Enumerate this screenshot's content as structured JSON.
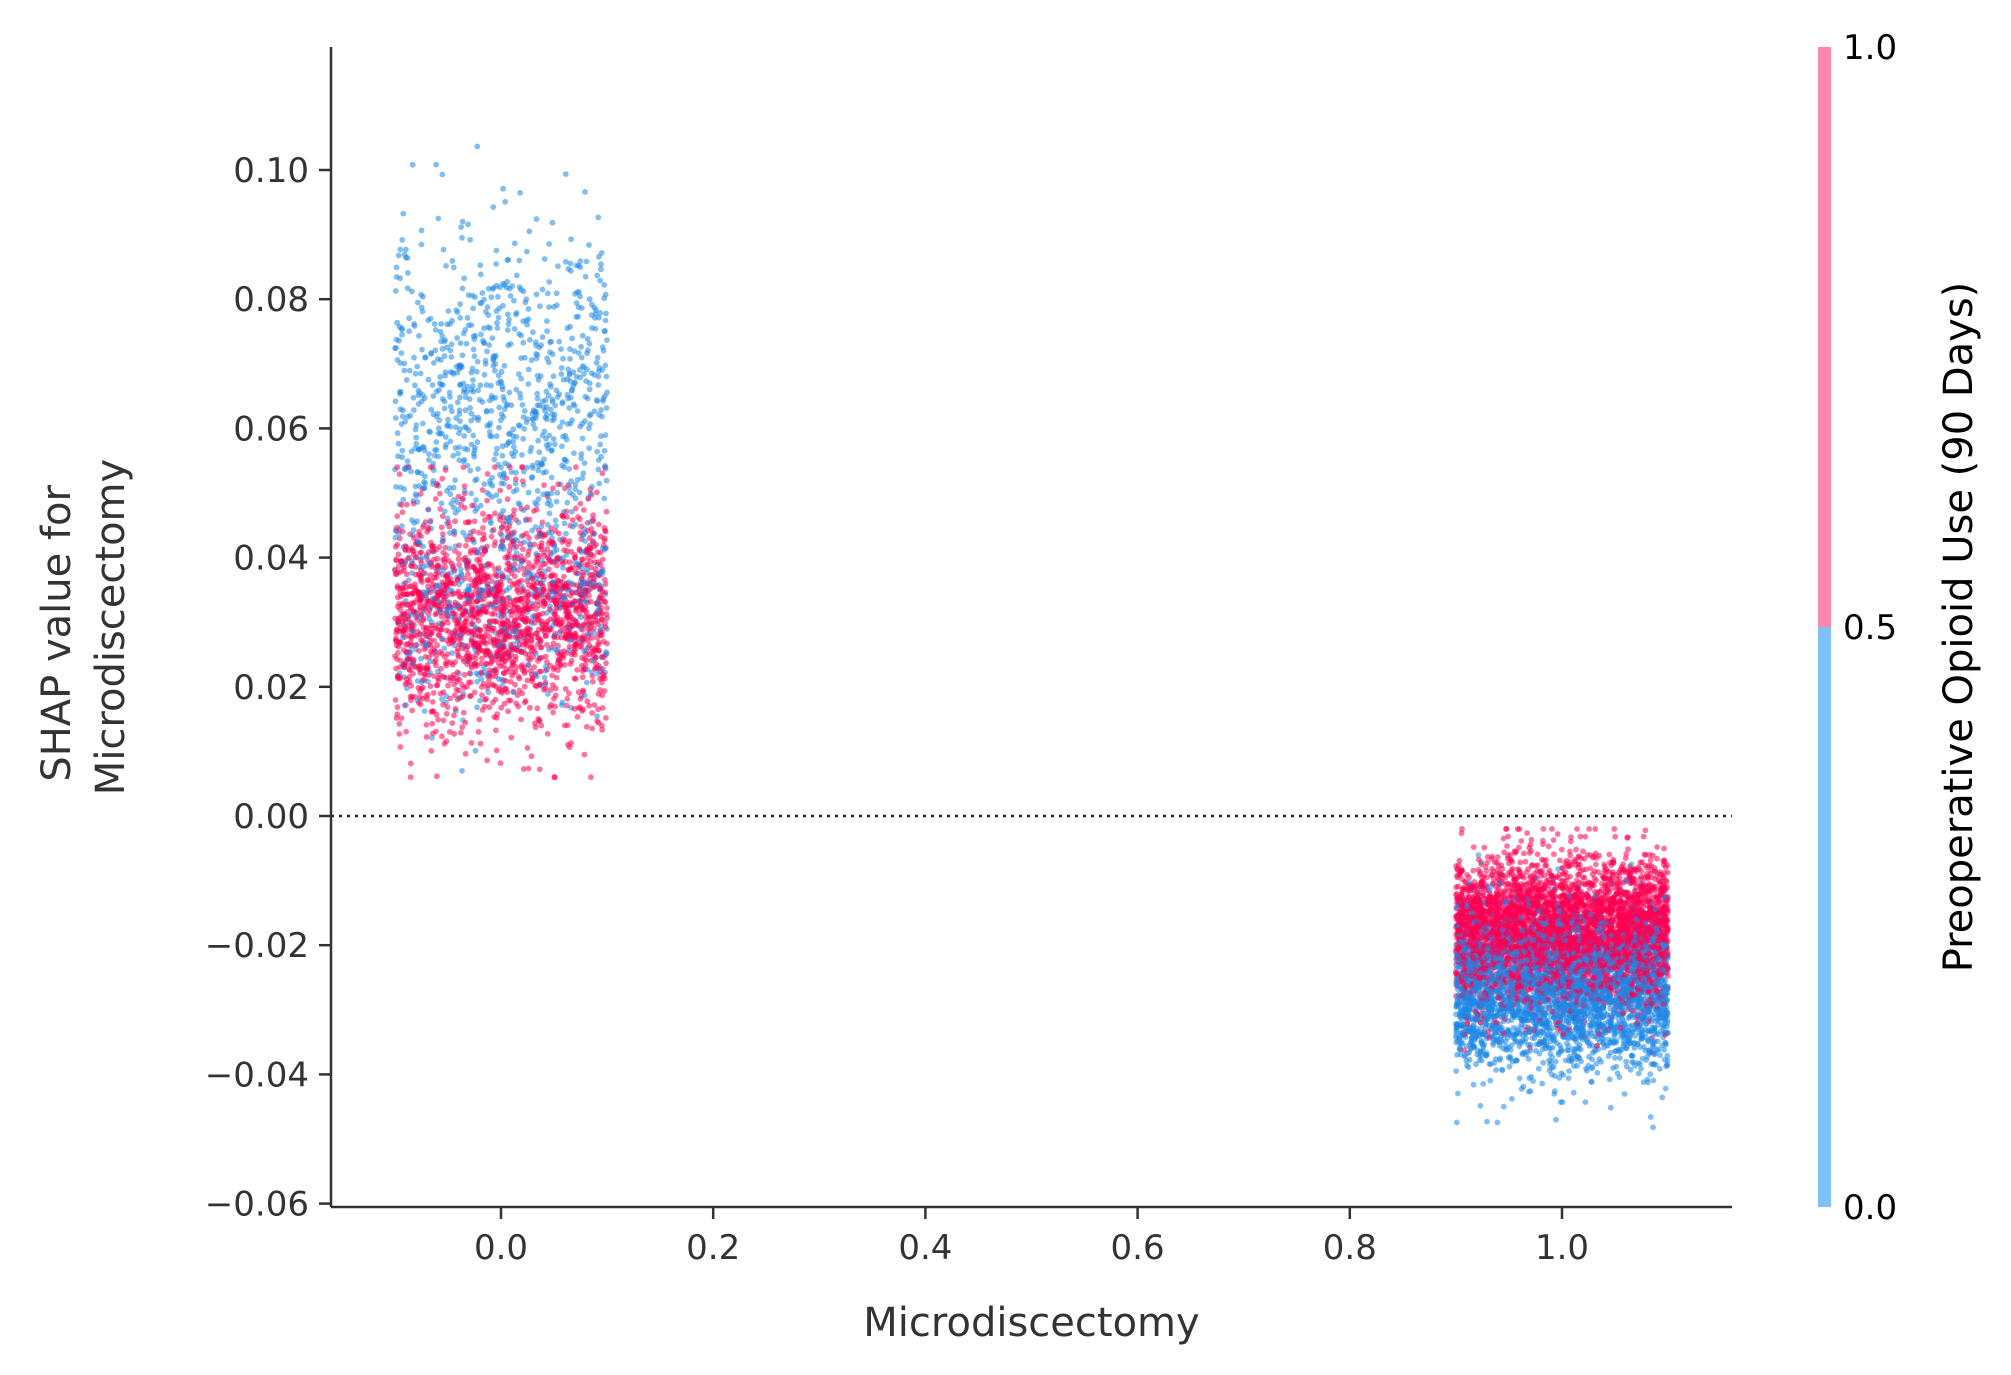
{
  "chart_data": {
    "type": "scatter",
    "title": "",
    "xlabel": "Microdiscectomy",
    "ylabel": [
      "SHAP value for",
      "Microdiscectomy"
    ],
    "xlim": [
      -0.16,
      1.16
    ],
    "ylim": [
      -0.0605,
      0.1195
    ],
    "x_ticks": [
      0.0,
      0.2,
      0.4,
      0.6,
      0.8,
      1.0
    ],
    "x_tick_labels": [
      "0.0",
      "0.2",
      "0.4",
      "0.6",
      "0.8",
      "1.0"
    ],
    "y_ticks": [
      -0.06,
      -0.04,
      -0.02,
      0.0,
      0.02,
      0.04,
      0.06,
      0.08,
      0.1
    ],
    "y_tick_labels": [
      "−0.06",
      "−0.04",
      "−0.02",
      "0.00",
      "0.02",
      "0.04",
      "0.06",
      "0.08",
      "0.10"
    ],
    "reference_line": {
      "y": 0.0,
      "style": "dotted"
    },
    "jitter_width": 0.1,
    "grid": false,
    "colorbar": {
      "title": "Preoperative Opioid Use (90 Days)",
      "range": [
        0.0,
        1.0
      ],
      "tick_labels": [
        "0.0",
        "0.5",
        "1.0"
      ],
      "low_color": "#7ec1f7",
      "high_color": "#ff88aa"
    },
    "point_colors": {
      "value_0": "#1e88e5",
      "value_1": "#ff0052"
    },
    "groups": [
      {
        "feature_value": 0.0,
        "point_count": 3200,
        "clusters": [
          {
            "color_value": 1,
            "count": 1900,
            "y_mean": 0.031,
            "y_sd": 0.0085,
            "y_min": 0.006,
            "y_max": 0.054
          },
          {
            "color_value": 0,
            "count": 400,
            "y_mean": 0.033,
            "y_sd": 0.008,
            "y_min": 0.007,
            "y_max": 0.055
          },
          {
            "color_value": 0,
            "count": 900,
            "y_mean": 0.064,
            "y_sd": 0.014,
            "y_min": 0.035,
            "y_max": 0.111
          }
        ]
      },
      {
        "feature_value": 1.0,
        "point_count": 7700,
        "clusters": [
          {
            "color_value": 0,
            "count": 3300,
            "y_mean": -0.027,
            "y_sd": 0.006,
            "y_min": -0.053,
            "y_max": -0.003
          },
          {
            "color_value": 1,
            "count": 4400,
            "y_mean": -0.018,
            "y_sd": 0.0055,
            "y_min": -0.048,
            "y_max": -0.002
          }
        ]
      }
    ]
  }
}
